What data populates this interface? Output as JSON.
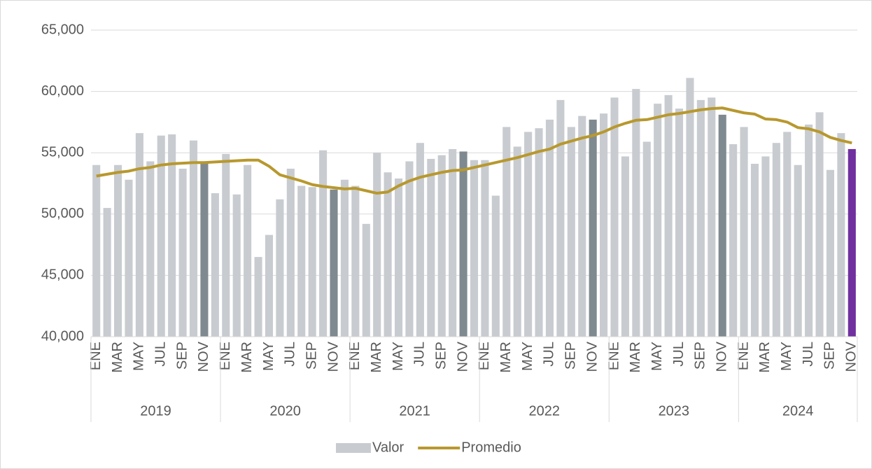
{
  "chart_data": {
    "type": "bar_line",
    "categories": [
      "ENE",
      null,
      "MAR",
      null,
      "MAY",
      null,
      "JUL",
      null,
      "SEP",
      null,
      "NOV",
      null,
      "ENE",
      null,
      "MAR",
      null,
      "MAY",
      null,
      "JUL",
      null,
      "SEP",
      null,
      "NOV",
      null,
      "ENE",
      null,
      "MAR",
      null,
      "MAY",
      null,
      "JUL",
      null,
      "SEP",
      null,
      "NOV",
      null,
      "ENE",
      null,
      "MAR",
      null,
      "MAY",
      null,
      "JUL",
      null,
      "SEP",
      null,
      "NOV",
      null,
      "ENE",
      null,
      "MAR",
      null,
      "MAY",
      null,
      "JUL",
      null,
      "SEP",
      null,
      "NOV",
      null,
      "ENE",
      null,
      "MAR",
      null,
      "MAY",
      null,
      "JUL",
      null,
      "SEP",
      null,
      "NOV"
    ],
    "year_groups": [
      "2019",
      "2020",
      "2021",
      "2022",
      "2023",
      "2024"
    ],
    "ylim": [
      40000,
      65000
    ],
    "yticks": [
      {
        "value": 40000,
        "label": "40,000"
      },
      {
        "value": 45000,
        "label": "45,000"
      },
      {
        "value": 50000,
        "label": "50,000"
      },
      {
        "value": 55000,
        "label": "55,000"
      },
      {
        "value": 60000,
        "label": "60,000"
      },
      {
        "value": 65000,
        "label": "65,000"
      }
    ],
    "grid": true,
    "legend": "bottom",
    "series": [
      {
        "name": "Valor",
        "type": "bar",
        "color": "#c8ccd0",
        "colors": [
          "#c8ccd0",
          "#c8ccd0",
          "#c8ccd0",
          "#c8ccd0",
          "#c8ccd0",
          "#c8ccd0",
          "#c8ccd0",
          "#c8ccd0",
          "#c8ccd0",
          "#c8ccd0",
          "#7f8a90",
          "#c8ccd0",
          "#c8ccd0",
          "#c8ccd0",
          "#c8ccd0",
          "#c8ccd0",
          "#c8ccd0",
          "#c8ccd0",
          "#c8ccd0",
          "#c8ccd0",
          "#c8ccd0",
          "#c8ccd0",
          "#7f8a90",
          "#c8ccd0",
          "#c8ccd0",
          "#c8ccd0",
          "#c8ccd0",
          "#c8ccd0",
          "#c8ccd0",
          "#c8ccd0",
          "#c8ccd0",
          "#c8ccd0",
          "#c8ccd0",
          "#c8ccd0",
          "#7f8a90",
          "#c8ccd0",
          "#c8ccd0",
          "#c8ccd0",
          "#c8ccd0",
          "#c8ccd0",
          "#c8ccd0",
          "#c8ccd0",
          "#c8ccd0",
          "#c8ccd0",
          "#c8ccd0",
          "#c8ccd0",
          "#7f8a90",
          "#c8ccd0",
          "#c8ccd0",
          "#c8ccd0",
          "#c8ccd0",
          "#c8ccd0",
          "#c8ccd0",
          "#c8ccd0",
          "#c8ccd0",
          "#c8ccd0",
          "#c8ccd0",
          "#c8ccd0",
          "#7f8a90",
          "#c8ccd0",
          "#c8ccd0",
          "#c8ccd0",
          "#c8ccd0",
          "#c8ccd0",
          "#c8ccd0",
          "#c8ccd0",
          "#c8ccd0",
          "#c8ccd0",
          "#c8ccd0",
          "#c8ccd0",
          "#7030a0"
        ],
        "values": [
          54000,
          50500,
          54000,
          52800,
          56600,
          54300,
          56400,
          56500,
          53700,
          56000,
          54200,
          51700,
          54900,
          51600,
          54000,
          46500,
          48300,
          51200,
          53700,
          52300,
          52200,
          55200,
          52000,
          52800,
          52300,
          49200,
          55000,
          53400,
          52900,
          54300,
          55800,
          54500,
          54800,
          55300,
          55100,
          54400,
          54400,
          51500,
          57100,
          55500,
          56700,
          57000,
          57700,
          59300,
          57100,
          58000,
          57700,
          58200,
          59500,
          54700,
          60200,
          55900,
          59000,
          59700,
          58600,
          61100,
          59300,
          59500,
          58100,
          55700,
          57100,
          54100,
          54700,
          55800,
          56700,
          54000,
          57300,
          58300,
          53600,
          56600,
          55300
        ]
      },
      {
        "name": "Promedio",
        "type": "line",
        "color": "#b8982e",
        "values": [
          53100,
          53250,
          53400,
          53500,
          53700,
          53800,
          54000,
          54100,
          54150,
          54200,
          54200,
          54250,
          54300,
          54350,
          54400,
          54400,
          53900,
          53200,
          52950,
          52700,
          52400,
          52250,
          52150,
          52050,
          52100,
          51900,
          51700,
          51800,
          52300,
          52700,
          53000,
          53200,
          53400,
          53550,
          53600,
          53800,
          54000,
          54200,
          54400,
          54600,
          54850,
          55100,
          55300,
          55700,
          55950,
          56200,
          56400,
          56700,
          57100,
          57400,
          57650,
          57700,
          57900,
          58100,
          58200,
          58350,
          58500,
          58600,
          58650,
          58450,
          58250,
          58150,
          57750,
          57700,
          57500,
          57050,
          56950,
          56700,
          56250,
          56000,
          55800
        ]
      }
    ]
  }
}
